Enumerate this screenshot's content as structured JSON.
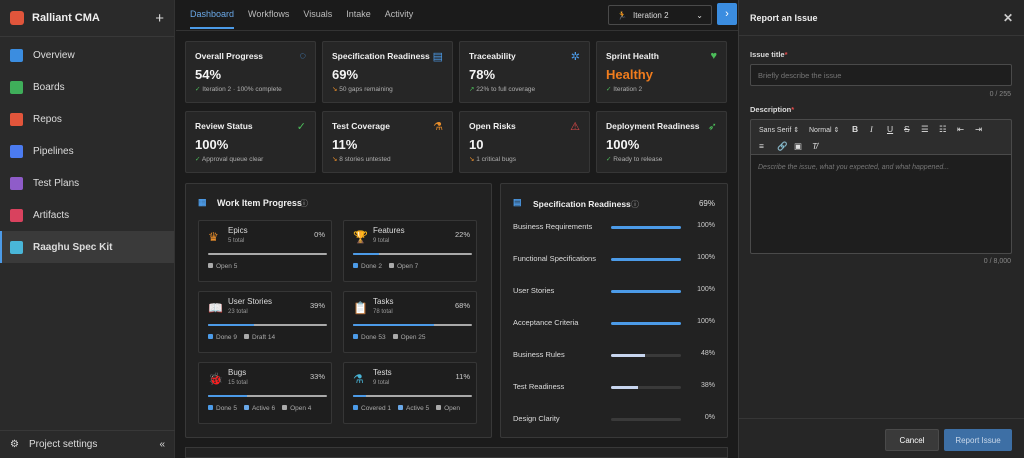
{
  "org": {
    "name": "Ralliant CMA"
  },
  "sidebar": {
    "items": [
      {
        "label": "Overview",
        "color": "#3b8de0"
      },
      {
        "label": "Boards",
        "color": "#3fae5a"
      },
      {
        "label": "Repos",
        "color": "#e2553b"
      },
      {
        "label": "Pipelines",
        "color": "#4b7bf0"
      },
      {
        "label": "Test Plans",
        "color": "#8f5cc9"
      },
      {
        "label": "Artifacts",
        "color": "#d9425e"
      },
      {
        "label": "Raaghu Spec Kit",
        "color": "#49b6d8"
      }
    ],
    "project_settings": "Project settings"
  },
  "tabs": [
    "Dashboard",
    "Workflows",
    "Visuals",
    "Intake",
    "Activity"
  ],
  "iteration": "Iteration 2",
  "cards": [
    {
      "title": "Overall Progress",
      "value": "54%",
      "sub": "Iteration 2 · 100% complete"
    },
    {
      "title": "Specification Readiness",
      "value": "69%",
      "sub": "50 gaps remaining"
    },
    {
      "title": "Traceability",
      "value": "78%",
      "sub": "22% to full coverage"
    },
    {
      "title": "Sprint Health",
      "value": "Healthy",
      "sub": "Iteration 2"
    },
    {
      "title": "Review Status",
      "value": "100%",
      "sub": "Approval queue clear"
    },
    {
      "title": "Test Coverage",
      "value": "11%",
      "sub": "8 stories untested"
    },
    {
      "title": "Open Risks",
      "value": "10",
      "sub": "1 critical bugs"
    },
    {
      "title": "Deployment Readiness",
      "value": "100%",
      "sub": "Ready to release"
    }
  ],
  "work_items": {
    "title": "Work Item Progress",
    "items": [
      {
        "name": "Epics",
        "total": "5 total",
        "pct": "0%",
        "progress": 0,
        "legend": [
          {
            "label": "Open 5",
            "color": "#aaaaaa"
          }
        ]
      },
      {
        "name": "Features",
        "total": "9 total",
        "pct": "22%",
        "progress": 0.22,
        "legend": [
          {
            "label": "Done 2",
            "color": "#4c9be8"
          },
          {
            "label": "Open 7",
            "color": "#aaaaaa"
          }
        ]
      },
      {
        "name": "User Stories",
        "total": "23 total",
        "pct": "39%",
        "progress": 0.39,
        "legend": [
          {
            "label": "Done 9",
            "color": "#4c9be8"
          },
          {
            "label": "Draft 14",
            "color": "#aaaaaa"
          }
        ]
      },
      {
        "name": "Tasks",
        "total": "78 total",
        "pct": "68%",
        "progress": 0.68,
        "legend": [
          {
            "label": "Done 53",
            "color": "#4c9be8"
          },
          {
            "label": "Open 25",
            "color": "#aaaaaa"
          }
        ]
      },
      {
        "name": "Bugs",
        "total": "15 total",
        "pct": "33%",
        "progress": 0.33,
        "legend": [
          {
            "label": "Done 5",
            "color": "#4c9be8"
          },
          {
            "label": "Active 6",
            "color": "#6aa8e8"
          },
          {
            "label": "Open 4",
            "color": "#aaaaaa"
          }
        ]
      },
      {
        "name": "Tests",
        "total": "9 total",
        "pct": "11%",
        "progress": 0.11,
        "legend": [
          {
            "label": "Covered 1",
            "color": "#4c9be8"
          },
          {
            "label": "Active 5",
            "color": "#6aa8e8"
          },
          {
            "label": "Open",
            "color": "#aaaaaa"
          }
        ]
      }
    ]
  },
  "spec": {
    "title": "Specification Readiness",
    "overall": "69%",
    "rows": [
      {
        "label": "Business Requirements",
        "pct": "100%",
        "value": 1
      },
      {
        "label": "Functional Specifications",
        "pct": "100%",
        "value": 1
      },
      {
        "label": "User Stories",
        "pct": "100%",
        "value": 1
      },
      {
        "label": "Acceptance Criteria",
        "pct": "100%",
        "value": 1
      },
      {
        "label": "Business Rules",
        "pct": "48%",
        "value": 0.48
      },
      {
        "label": "Test Readiness",
        "pct": "38%",
        "value": 0.38
      },
      {
        "label": "Design Clarity",
        "pct": "0%",
        "value": 0
      }
    ]
  },
  "report": {
    "title": "Report an Issue",
    "issue_title_label": "Issue title",
    "issue_placeholder": "Briefly describe the issue",
    "title_count": "0 / 255",
    "description_label": "Description",
    "font": "Sans Serif",
    "size": "Normal",
    "description_placeholder": "Describe the issue, what you expected, and what happened...",
    "desc_count": "0 / 8,000",
    "cancel": "Cancel",
    "submit": "Report Issue"
  }
}
